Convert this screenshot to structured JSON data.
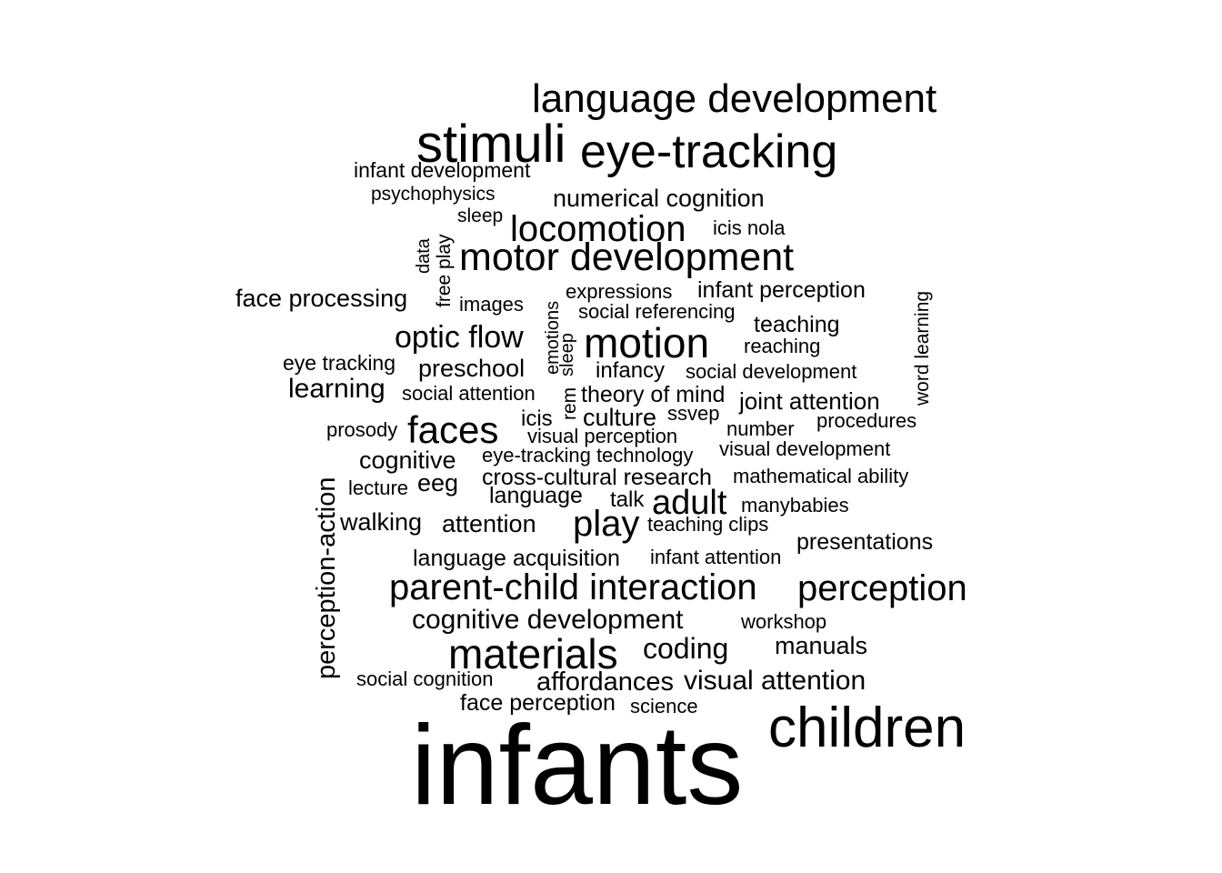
{
  "words": [
    {
      "id": "infants",
      "text": "infants"
    },
    {
      "id": "children",
      "text": "children"
    },
    {
      "id": "language-development",
      "text": "language development"
    },
    {
      "id": "stimuli",
      "text": "stimuli"
    },
    {
      "id": "eye-tracking",
      "text": "eye-tracking"
    },
    {
      "id": "infant-development",
      "text": "infant development"
    },
    {
      "id": "psychophysics",
      "text": "psychophysics"
    },
    {
      "id": "numerical-cognition",
      "text": "numerical cognition"
    },
    {
      "id": "sleep",
      "text": "sleep"
    },
    {
      "id": "locomotion",
      "text": "locomotion"
    },
    {
      "id": "icis-nola",
      "text": "icis nola"
    },
    {
      "id": "data",
      "text": "data"
    },
    {
      "id": "free-play",
      "text": "free play"
    },
    {
      "id": "motor-development",
      "text": "motor development"
    },
    {
      "id": "face-processing",
      "text": "face processing"
    },
    {
      "id": "images",
      "text": "images"
    },
    {
      "id": "emotions",
      "text": "emotions"
    },
    {
      "id": "expressions",
      "text": "expressions"
    },
    {
      "id": "infant-perception",
      "text": "infant perception"
    },
    {
      "id": "word-learning",
      "text": "word learning"
    },
    {
      "id": "social-referencing",
      "text": "social referencing"
    },
    {
      "id": "teaching",
      "text": "teaching"
    },
    {
      "id": "optic-flow",
      "text": "optic flow"
    },
    {
      "id": "sleep-2",
      "text": "sleep"
    },
    {
      "id": "motion",
      "text": "motion"
    },
    {
      "id": "reaching",
      "text": "reaching"
    },
    {
      "id": "eye-tracking-2",
      "text": "eye tracking"
    },
    {
      "id": "preschool",
      "text": "preschool"
    },
    {
      "id": "infancy",
      "text": "infancy"
    },
    {
      "id": "social-development",
      "text": "social development"
    },
    {
      "id": "learning",
      "text": "learning"
    },
    {
      "id": "social-attention",
      "text": "social attention"
    },
    {
      "id": "rem",
      "text": "rem"
    },
    {
      "id": "theory-of-mind",
      "text": "theory of mind"
    },
    {
      "id": "joint-attention",
      "text": "joint attention"
    },
    {
      "id": "icis",
      "text": "icis"
    },
    {
      "id": "culture",
      "text": "culture"
    },
    {
      "id": "ssvep",
      "text": "ssvep"
    },
    {
      "id": "prosody",
      "text": "prosody"
    },
    {
      "id": "faces",
      "text": "faces"
    },
    {
      "id": "number",
      "text": "number"
    },
    {
      "id": "procedures",
      "text": "procedures"
    },
    {
      "id": "visual-perception",
      "text": "visual perception"
    },
    {
      "id": "visual-development",
      "text": "visual development"
    },
    {
      "id": "cognitive",
      "text": "cognitive"
    },
    {
      "id": "eye-tracking-technology",
      "text": "eye-tracking technology"
    },
    {
      "id": "perception-action",
      "text": "perception-action"
    },
    {
      "id": "cross-cultural-research",
      "text": "cross-cultural research"
    },
    {
      "id": "mathematical-ability",
      "text": "mathematical ability"
    },
    {
      "id": "lecture",
      "text": "lecture"
    },
    {
      "id": "eeg",
      "text": "eeg"
    },
    {
      "id": "language",
      "text": "language"
    },
    {
      "id": "talk",
      "text": "talk"
    },
    {
      "id": "adult",
      "text": "adult"
    },
    {
      "id": "manybabies",
      "text": "manybabies"
    },
    {
      "id": "walking",
      "text": "walking"
    },
    {
      "id": "attention",
      "text": "attention"
    },
    {
      "id": "play",
      "text": "play"
    },
    {
      "id": "teaching-clips",
      "text": "teaching clips"
    },
    {
      "id": "presentations",
      "text": "presentations"
    },
    {
      "id": "language-acquisition",
      "text": "language acquisition"
    },
    {
      "id": "infant-attention",
      "text": "infant attention"
    },
    {
      "id": "parent-child-interaction",
      "text": "parent-child interaction"
    },
    {
      "id": "perception",
      "text": "perception"
    },
    {
      "id": "cognitive-development",
      "text": "cognitive development"
    },
    {
      "id": "workshop",
      "text": "workshop"
    },
    {
      "id": "materials",
      "text": "materials"
    },
    {
      "id": "coding",
      "text": "coding"
    },
    {
      "id": "manuals",
      "text": "manuals"
    },
    {
      "id": "social-cognition",
      "text": "social cognition"
    },
    {
      "id": "affordances",
      "text": "affordances"
    },
    {
      "id": "visual-attention",
      "text": "visual attention"
    },
    {
      "id": "face-perception",
      "text": "face perception"
    },
    {
      "id": "science",
      "text": "science"
    }
  ]
}
